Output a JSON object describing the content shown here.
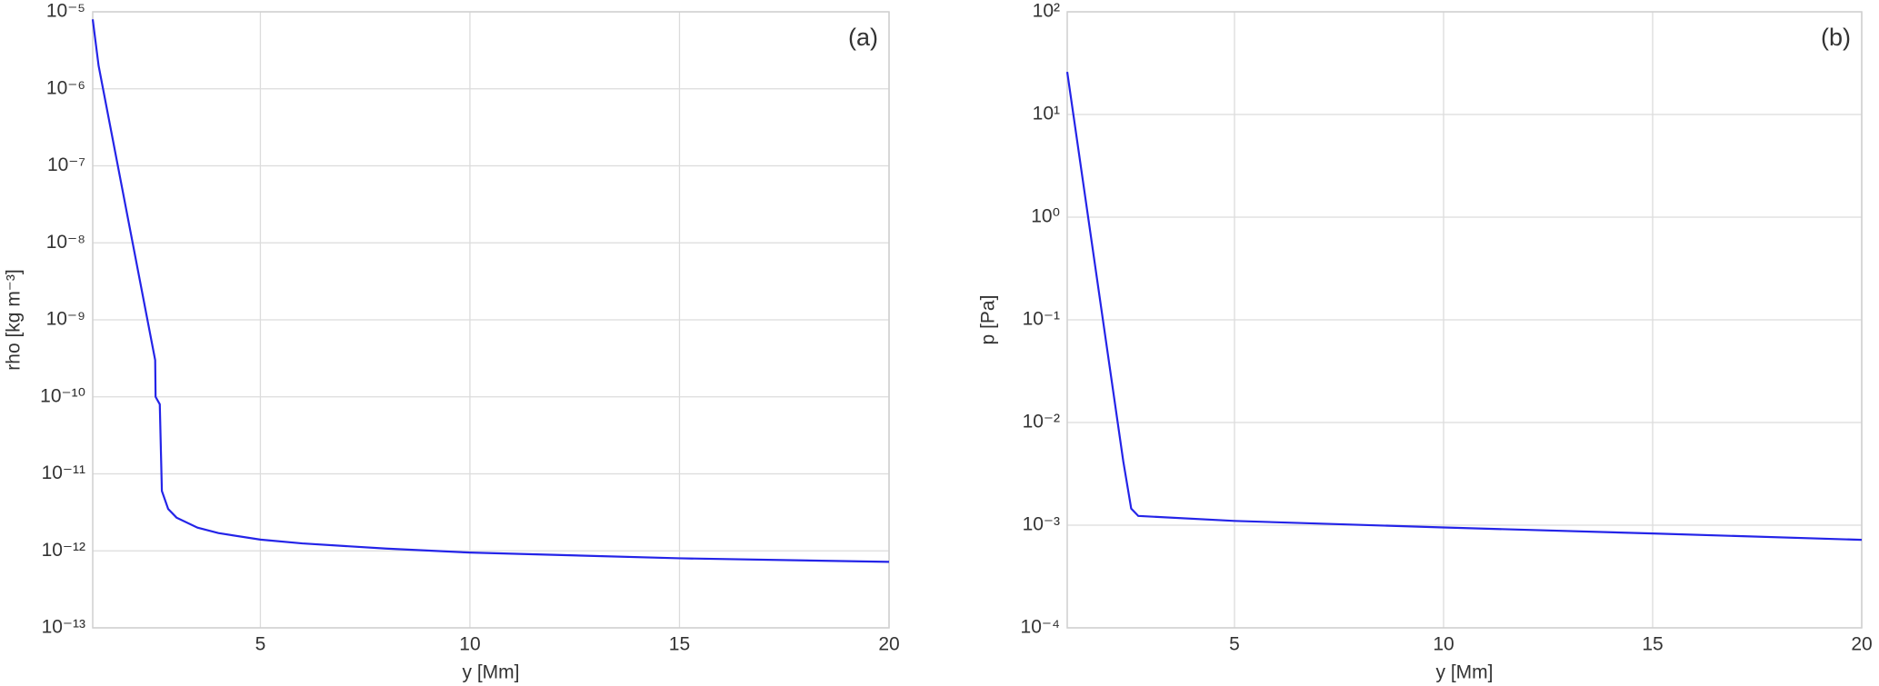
{
  "chart_data": [
    {
      "type": "line",
      "annotation": "(a)",
      "x_label": "y [Mm]",
      "y_label": "rho [kg m⁻³]",
      "y_scale": "log",
      "grid": true,
      "xlim": [
        1,
        20
      ],
      "xticks": [
        5,
        10,
        15,
        20
      ],
      "ylim": [
        1e-13,
        1e-05
      ],
      "yticks": [
        {
          "value": 1e-13,
          "label": "10⁻¹³"
        },
        {
          "value": 1e-12,
          "label": "10⁻¹²"
        },
        {
          "value": 1e-11,
          "label": "10⁻¹¹"
        },
        {
          "value": 1e-10,
          "label": "10⁻¹⁰"
        },
        {
          "value": 1e-09,
          "label": "10⁻⁹"
        },
        {
          "value": 1e-08,
          "label": "10⁻⁸"
        },
        {
          "value": 1e-07,
          "label": "10⁻⁷"
        },
        {
          "value": 1e-06,
          "label": "10⁻⁶"
        },
        {
          "value": 1e-05,
          "label": "10⁻⁵"
        }
      ],
      "series": [
        {
          "color": "#2424e8",
          "x": [
            1.0,
            1.14,
            2.49,
            2.5,
            2.6,
            2.65,
            2.8,
            3.0,
            3.5,
            4,
            5,
            6,
            8,
            10,
            15,
            20
          ],
          "values": [
            8e-06,
            2e-06,
            3e-10,
            1e-10,
            8e-11,
            6e-12,
            3.5e-12,
            2.7e-12,
            2e-12,
            1.7e-12,
            1.4e-12,
            1.25e-12,
            1.07e-12,
            9.5e-13,
            8e-13,
            7.2e-13
          ]
        }
      ]
    },
    {
      "type": "line",
      "annotation": "(b)",
      "x_label": "y [Mm]",
      "y_label": "p [Pa]",
      "y_scale": "log",
      "grid": true,
      "xlim": [
        1,
        20
      ],
      "xticks": [
        5,
        10,
        15,
        20
      ],
      "ylim": [
        0.0001,
        100
      ],
      "yticks": [
        {
          "value": 0.0001,
          "label": "10⁻⁴"
        },
        {
          "value": 0.001,
          "label": "10⁻³"
        },
        {
          "value": 0.01,
          "label": "10⁻²"
        },
        {
          "value": 0.1,
          "label": "10⁻¹"
        },
        {
          "value": 1,
          "label": "10⁰"
        },
        {
          "value": 10,
          "label": "10¹"
        },
        {
          "value": 100,
          "label": "10²"
        }
      ],
      "series": [
        {
          "color": "#2424e8",
          "x": [
            1.0,
            2.34,
            2.53,
            2.7,
            5,
            10,
            15,
            20
          ],
          "values": [
            26,
            0.0042,
            0.00145,
            0.00123,
            0.0011,
            0.00095,
            0.00083,
            0.00072
          ]
        }
      ]
    }
  ]
}
